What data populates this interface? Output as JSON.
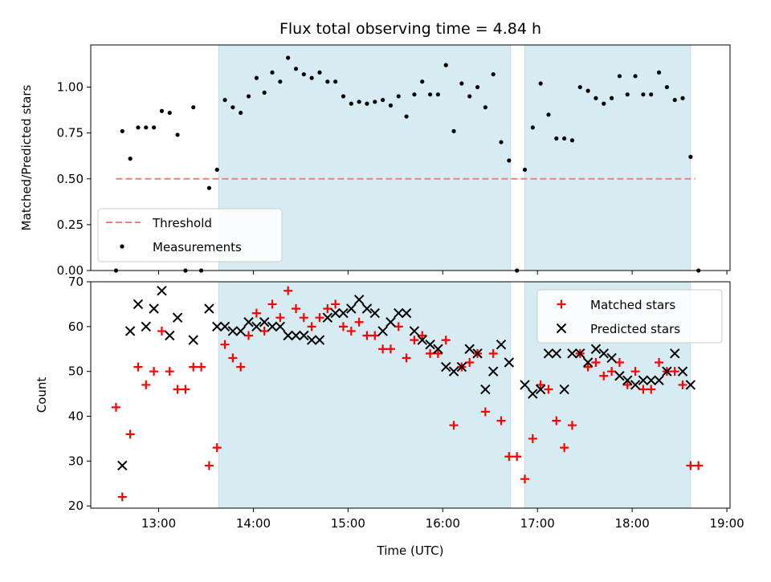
{
  "chart_data": [
    {
      "type": "scatter",
      "title": "Flux total observing time = 4.84 h",
      "xlabel": "",
      "ylabel": "Matched/Predicted stars",
      "xlim": [
        "12:17",
        "19:02"
      ],
      "ylim": [
        0,
        1.23
      ],
      "yticks": [
        "0.00",
        "0.25",
        "0.50",
        "0.75",
        "1.00"
      ],
      "shaded_spans": [
        [
          "13:38",
          "16:43"
        ],
        [
          "16:52",
          "18:37"
        ]
      ],
      "threshold": {
        "value": 0.5,
        "x_range": [
          "12:33",
          "18:40"
        ],
        "color": "#f08080"
      },
      "legend": {
        "placement": "lower-left",
        "entries": [
          "Threshold",
          "Measurements"
        ]
      },
      "series": [
        {
          "name": "Measurements",
          "color": "#000000",
          "points": [
            [
              "12:33",
              0.0
            ],
            [
              "12:37",
              0.76
            ],
            [
              "12:42",
              0.61
            ],
            [
              "12:47",
              0.78
            ],
            [
              "12:52",
              0.78
            ],
            [
              "12:57",
              0.78
            ],
            [
              "13:02",
              0.87
            ],
            [
              "13:07",
              0.86
            ],
            [
              "13:12",
              0.74
            ],
            [
              "13:17",
              0.0
            ],
            [
              "13:22",
              0.89
            ],
            [
              "13:27",
              0.0
            ],
            [
              "13:32",
              0.45
            ],
            [
              "13:37",
              0.55
            ],
            [
              "13:42",
              0.93
            ],
            [
              "13:47",
              0.89
            ],
            [
              "13:52",
              0.86
            ],
            [
              "13:57",
              0.95
            ],
            [
              "14:02",
              1.05
            ],
            [
              "14:07",
              0.97
            ],
            [
              "14:12",
              1.08
            ],
            [
              "14:17",
              1.03
            ],
            [
              "14:22",
              1.16
            ],
            [
              "14:27",
              1.1
            ],
            [
              "14:32",
              1.07
            ],
            [
              "14:37",
              1.05
            ],
            [
              "14:42",
              1.08
            ],
            [
              "14:47",
              1.03
            ],
            [
              "14:52",
              1.03
            ],
            [
              "14:57",
              0.95
            ],
            [
              "15:02",
              0.91
            ],
            [
              "15:07",
              0.92
            ],
            [
              "15:12",
              0.91
            ],
            [
              "15:17",
              0.92
            ],
            [
              "15:22",
              0.93
            ],
            [
              "15:27",
              0.9
            ],
            [
              "15:32",
              0.95
            ],
            [
              "15:37",
              0.84
            ],
            [
              "15:42",
              0.96
            ],
            [
              "15:47",
              1.03
            ],
            [
              "15:52",
              0.96
            ],
            [
              "15:57",
              0.96
            ],
            [
              "16:02",
              1.12
            ],
            [
              "16:07",
              0.76
            ],
            [
              "16:12",
              1.02
            ],
            [
              "16:17",
              0.95
            ],
            [
              "16:22",
              1.0
            ],
            [
              "16:27",
              0.89
            ],
            [
              "16:32",
              1.07
            ],
            [
              "16:37",
              0.7
            ],
            [
              "16:42",
              0.6
            ],
            [
              "16:47",
              0.0
            ],
            [
              "16:52",
              0.55
            ],
            [
              "16:57",
              0.78
            ],
            [
              "17:02",
              1.02
            ],
            [
              "17:07",
              0.85
            ],
            [
              "17:12",
              0.72
            ],
            [
              "17:17",
              0.72
            ],
            [
              "17:22",
              0.71
            ],
            [
              "17:27",
              1.0
            ],
            [
              "17:32",
              0.98
            ],
            [
              "17:37",
              0.94
            ],
            [
              "17:42",
              0.91
            ],
            [
              "17:47",
              0.94
            ],
            [
              "17:52",
              1.06
            ],
            [
              "17:57",
              0.96
            ],
            [
              "18:02",
              1.06
            ],
            [
              "18:07",
              0.96
            ],
            [
              "18:12",
              0.96
            ],
            [
              "18:17",
              1.08
            ],
            [
              "18:22",
              1.0
            ],
            [
              "18:27",
              0.93
            ],
            [
              "18:32",
              0.94
            ],
            [
              "18:37",
              0.62
            ],
            [
              "18:42",
              0.0
            ]
          ]
        }
      ]
    },
    {
      "type": "scatter",
      "title": "",
      "xlabel": "Time (UTC)",
      "ylabel": "Count",
      "xlim": [
        "12:17",
        "19:02"
      ],
      "ylim": [
        19.5,
        70
      ],
      "xticks": [
        "13:00",
        "14:00",
        "15:00",
        "16:00",
        "17:00",
        "18:00",
        "19:00"
      ],
      "yticks": [
        "20",
        "30",
        "40",
        "50",
        "60",
        "70"
      ],
      "shaded_spans": [
        [
          "13:38",
          "16:43"
        ],
        [
          "16:52",
          "18:37"
        ]
      ],
      "legend": {
        "placement": "upper-right",
        "entries": [
          "Matched stars",
          "Predicted stars"
        ]
      },
      "series": [
        {
          "name": "Matched stars",
          "color": "#ff0000",
          "marker": "plus",
          "points": [
            [
              "12:33",
              42
            ],
            [
              "12:37",
              22
            ],
            [
              "12:42",
              36
            ],
            [
              "12:47",
              51
            ],
            [
              "12:52",
              47
            ],
            [
              "12:57",
              50
            ],
            [
              "13:02",
              59
            ],
            [
              "13:07",
              50
            ],
            [
              "13:12",
              46
            ],
            [
              "13:17",
              46
            ],
            [
              "13:22",
              51
            ],
            [
              "13:27",
              51
            ],
            [
              "13:32",
              29
            ],
            [
              "13:37",
              33
            ],
            [
              "13:42",
              56
            ],
            [
              "13:47",
              53
            ],
            [
              "13:52",
              51
            ],
            [
              "13:57",
              58
            ],
            [
              "14:02",
              63
            ],
            [
              "14:07",
              59
            ],
            [
              "14:12",
              65
            ],
            [
              "14:17",
              62
            ],
            [
              "14:22",
              68
            ],
            [
              "14:27",
              64
            ],
            [
              "14:32",
              62
            ],
            [
              "14:37",
              60
            ],
            [
              "14:42",
              62
            ],
            [
              "14:47",
              64
            ],
            [
              "14:52",
              65
            ],
            [
              "14:57",
              60
            ],
            [
              "15:02",
              59
            ],
            [
              "15:07",
              61
            ],
            [
              "15:12",
              58
            ],
            [
              "15:17",
              58
            ],
            [
              "15:22",
              55
            ],
            [
              "15:27",
              55
            ],
            [
              "15:32",
              60
            ],
            [
              "15:37",
              53
            ],
            [
              "15:42",
              57
            ],
            [
              "15:47",
              58
            ],
            [
              "15:52",
              54
            ],
            [
              "15:57",
              54
            ],
            [
              "16:02",
              57
            ],
            [
              "16:07",
              38
            ],
            [
              "16:12",
              51
            ],
            [
              "16:17",
              52
            ],
            [
              "16:22",
              54
            ],
            [
              "16:27",
              41
            ],
            [
              "16:32",
              54
            ],
            [
              "16:37",
              39
            ],
            [
              "16:42",
              31
            ],
            [
              "16:47",
              31
            ],
            [
              "16:52",
              26
            ],
            [
              "16:57",
              35
            ],
            [
              "17:02",
              47
            ],
            [
              "17:07",
              46
            ],
            [
              "17:12",
              39
            ],
            [
              "17:17",
              33
            ],
            [
              "17:22",
              38
            ],
            [
              "17:27",
              54
            ],
            [
              "17:32",
              51
            ],
            [
              "17:37",
              52
            ],
            [
              "17:42",
              49
            ],
            [
              "17:47",
              50
            ],
            [
              "17:52",
              52
            ],
            [
              "17:57",
              47
            ],
            [
              "18:02",
              50
            ],
            [
              "18:07",
              46
            ],
            [
              "18:12",
              46
            ],
            [
              "18:17",
              52
            ],
            [
              "18:22",
              50
            ],
            [
              "18:27",
              50
            ],
            [
              "18:32",
              47
            ],
            [
              "18:37",
              29
            ],
            [
              "18:42",
              29
            ]
          ]
        },
        {
          "name": "Predicted stars",
          "color": "#000000",
          "marker": "x",
          "points": [
            [
              "12:37",
              29
            ],
            [
              "12:42",
              59
            ],
            [
              "12:47",
              65
            ],
            [
              "12:52",
              60
            ],
            [
              "12:57",
              64
            ],
            [
              "13:02",
              68
            ],
            [
              "13:07",
              58
            ],
            [
              "13:12",
              62
            ],
            [
              "13:22",
              57
            ],
            [
              "13:32",
              64
            ],
            [
              "13:37",
              60
            ],
            [
              "13:42",
              60
            ],
            [
              "13:47",
              59
            ],
            [
              "13:52",
              59
            ],
            [
              "13:57",
              61
            ],
            [
              "14:02",
              60
            ],
            [
              "14:07",
              61
            ],
            [
              "14:12",
              60
            ],
            [
              "14:17",
              60
            ],
            [
              "14:22",
              58
            ],
            [
              "14:27",
              58
            ],
            [
              "14:32",
              58
            ],
            [
              "14:37",
              57
            ],
            [
              "14:42",
              57
            ],
            [
              "14:47",
              62
            ],
            [
              "14:52",
              63
            ],
            [
              "14:57",
              63
            ],
            [
              "15:02",
              64
            ],
            [
              "15:07",
              66
            ],
            [
              "15:12",
              64
            ],
            [
              "15:17",
              63
            ],
            [
              "15:22",
              59
            ],
            [
              "15:27",
              61
            ],
            [
              "15:32",
              63
            ],
            [
              "15:37",
              63
            ],
            [
              "15:42",
              59
            ],
            [
              "15:47",
              57
            ],
            [
              "15:52",
              56
            ],
            [
              "15:57",
              55
            ],
            [
              "16:02",
              51
            ],
            [
              "16:07",
              50
            ],
            [
              "16:12",
              51
            ],
            [
              "16:17",
              55
            ],
            [
              "16:22",
              54
            ],
            [
              "16:27",
              46
            ],
            [
              "16:32",
              50
            ],
            [
              "16:37",
              56
            ],
            [
              "16:42",
              52
            ],
            [
              "16:52",
              47
            ],
            [
              "16:57",
              45
            ],
            [
              "17:02",
              46
            ],
            [
              "17:07",
              54
            ],
            [
              "17:12",
              54
            ],
            [
              "17:17",
              46
            ],
            [
              "17:22",
              54
            ],
            [
              "17:27",
              54
            ],
            [
              "17:32",
              52
            ],
            [
              "17:37",
              55
            ],
            [
              "17:42",
              54
            ],
            [
              "17:47",
              53
            ],
            [
              "17:52",
              49
            ],
            [
              "17:57",
              48
            ],
            [
              "18:02",
              47
            ],
            [
              "18:07",
              48
            ],
            [
              "18:12",
              48
            ],
            [
              "18:17",
              48
            ],
            [
              "18:22",
              50
            ],
            [
              "18:27",
              54
            ],
            [
              "18:32",
              50
            ],
            [
              "18:37",
              47
            ]
          ]
        }
      ]
    }
  ]
}
